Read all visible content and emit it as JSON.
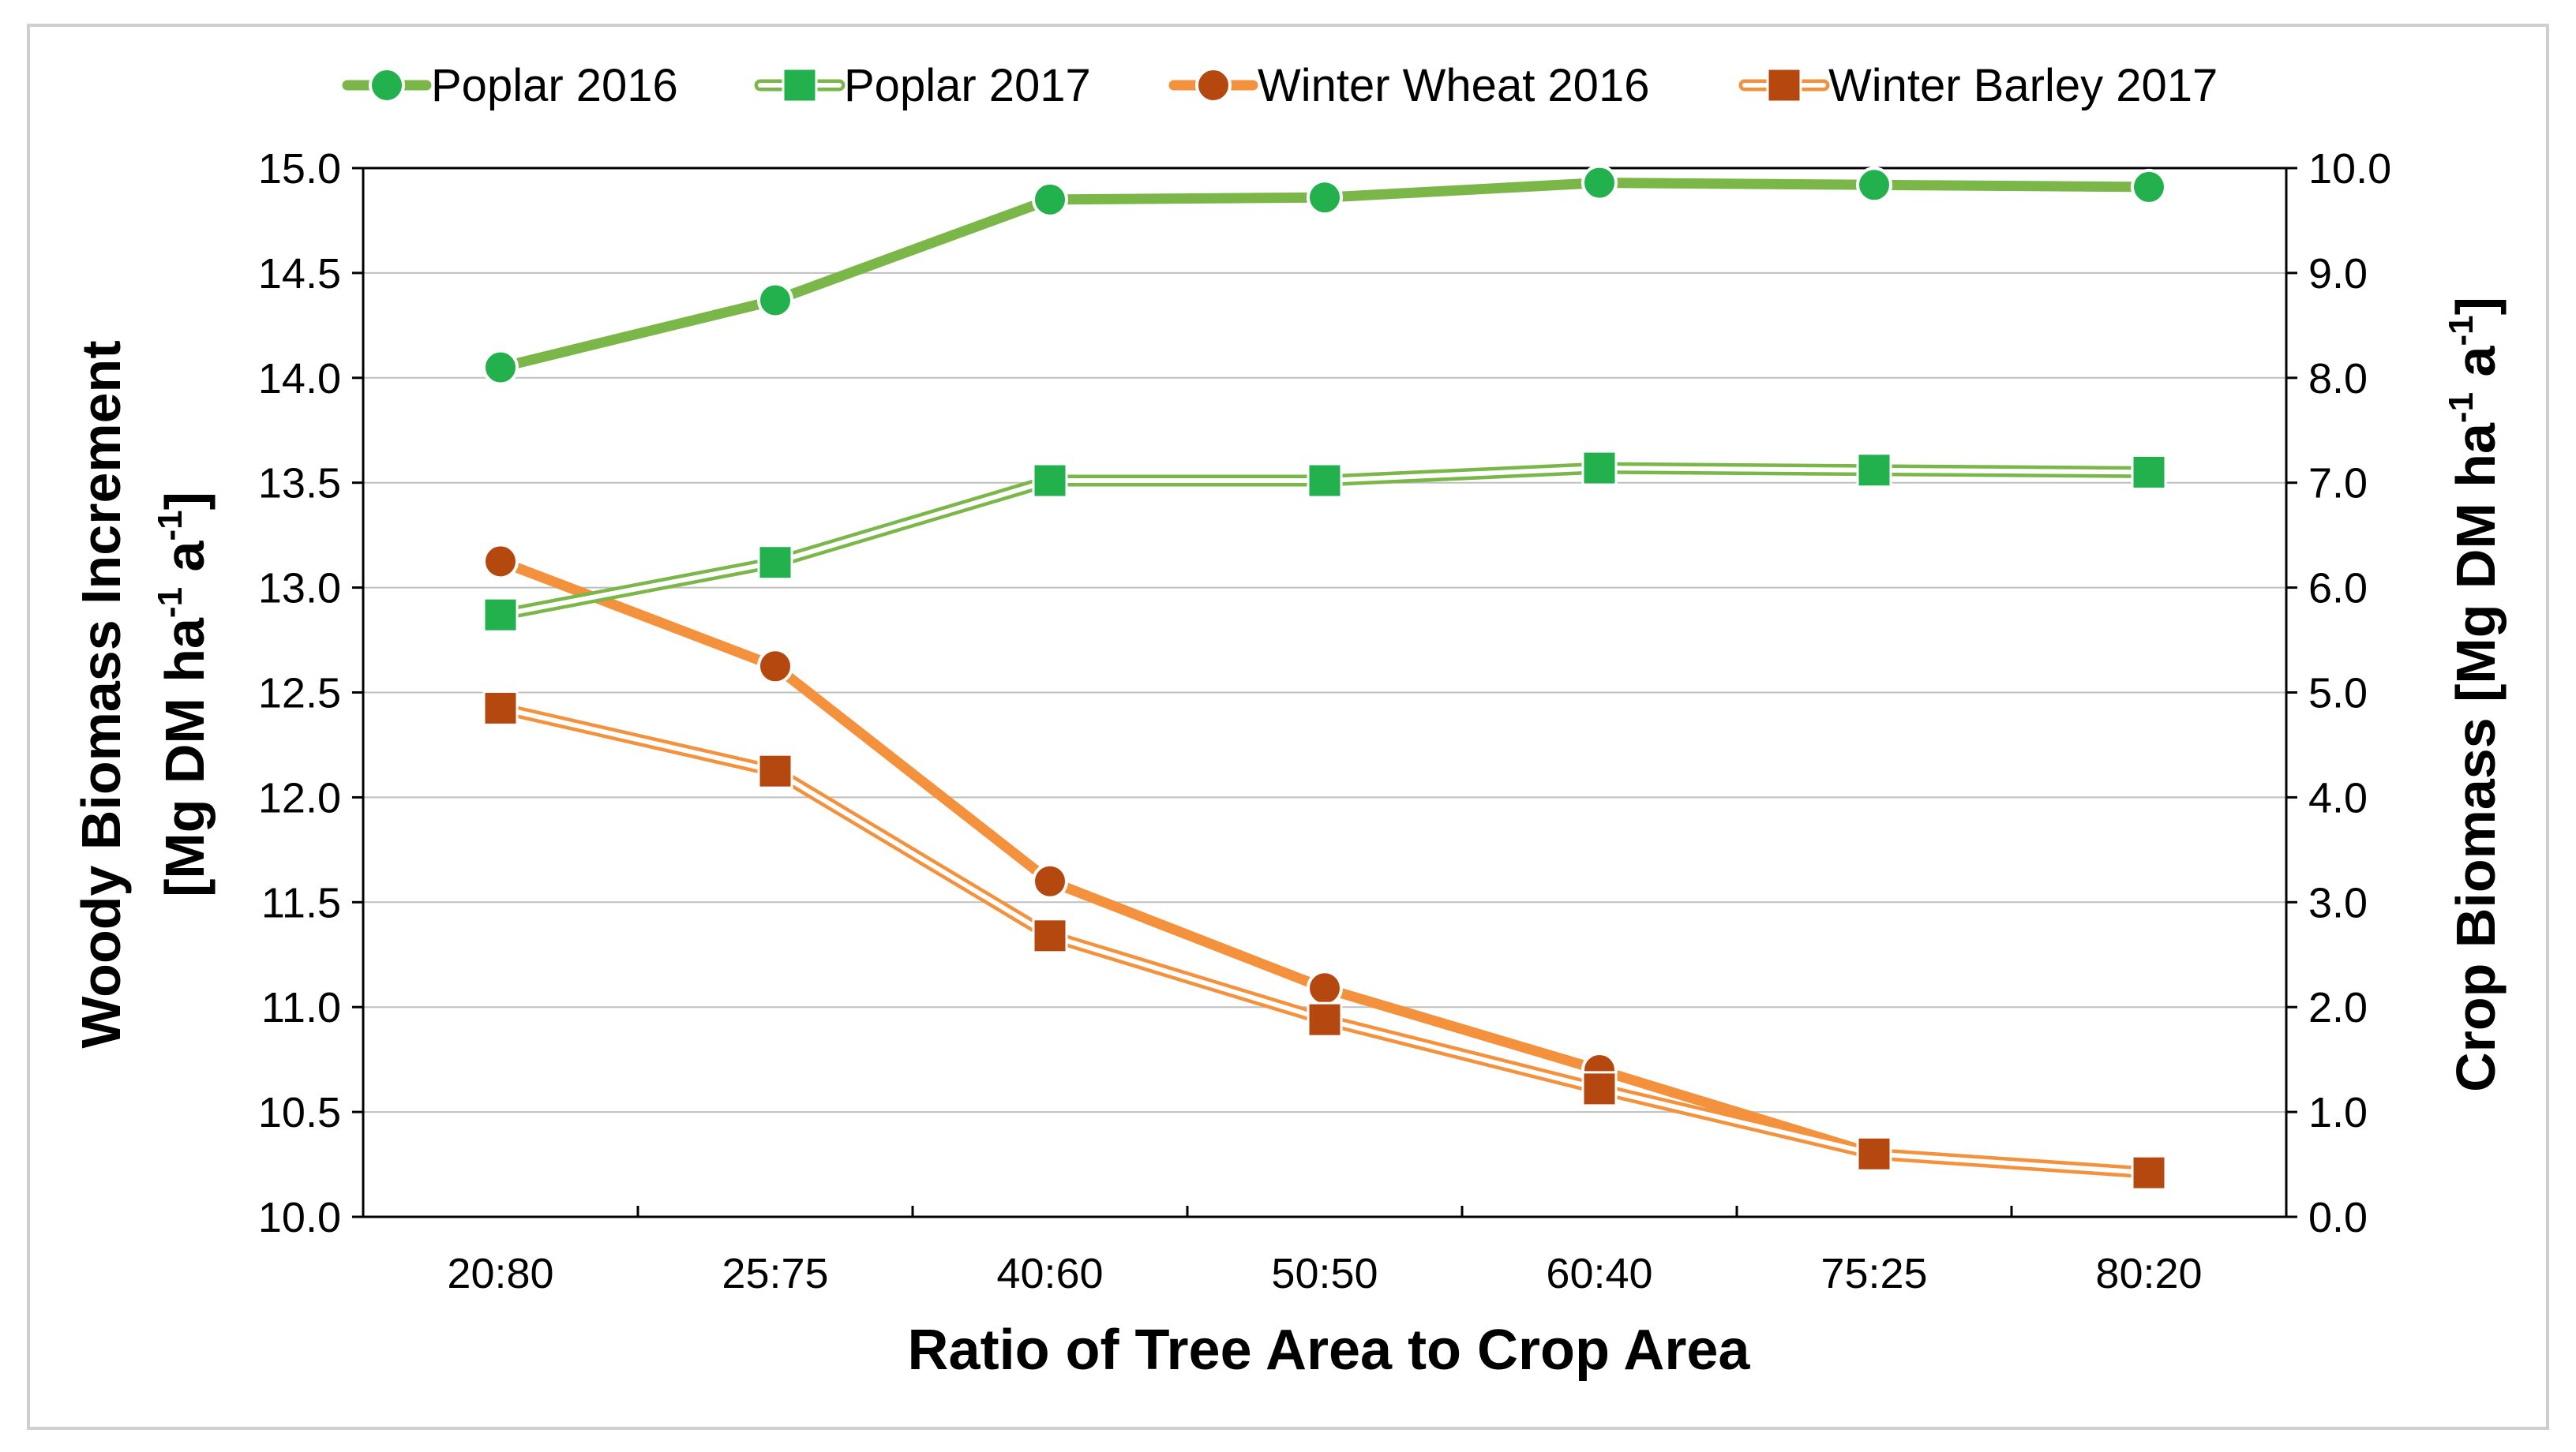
{
  "chart_data": {
    "type": "line",
    "title": "",
    "categories": [
      "20:80",
      "25:75",
      "40:60",
      "50:50",
      "60:40",
      "75:25",
      "80:20"
    ],
    "xlabel": "Ratio of Tree Area to Crop Area",
    "ylabel_left": {
      "main": "Woody Biomass Increment",
      "unit_prefix": "[Mg DM ha",
      "unit_exp1": "-1",
      "unit_mid": " a",
      "unit_exp2": "-1",
      "unit_suffix": "]"
    },
    "ylabel_right": {
      "main": "Crop Biomass ",
      "unit_prefix": "[Mg DM ha",
      "unit_exp1": "-1",
      "unit_mid": " a",
      "unit_exp2": "-1",
      "unit_suffix": "]"
    },
    "ylim_left": [
      10.0,
      15.0
    ],
    "ylim_right": [
      0.0,
      10.0
    ],
    "yticks_left": [
      "10.0",
      "10.5",
      "11.0",
      "11.5",
      "12.0",
      "12.5",
      "13.0",
      "13.5",
      "14.0",
      "14.5",
      "15.0"
    ],
    "yticks_right": [
      "0.0",
      "1.0",
      "2.0",
      "3.0",
      "4.0",
      "5.0",
      "6.0",
      "7.0",
      "8.0",
      "9.0",
      "10.0"
    ],
    "grid": true,
    "legend_position": "top",
    "series": [
      {
        "name": "Poplar 2016",
        "axis": "left",
        "values": [
          14.05,
          14.37,
          14.85,
          14.86,
          14.93,
          14.92,
          14.91
        ],
        "color": "#7ab648",
        "marker_color": "#22b14c",
        "marker": "circle",
        "line": "thick"
      },
      {
        "name": "Poplar 2017",
        "axis": "left",
        "values": [
          12.87,
          13.12,
          13.51,
          13.51,
          13.57,
          13.56,
          13.55
        ],
        "color": "#7ab648",
        "marker_color": "#22b14c",
        "marker": "square",
        "line": "double"
      },
      {
        "name": "Winter Wheat 2016",
        "axis": "right",
        "values": [
          6.25,
          5.25,
          3.2,
          2.18,
          1.4,
          0.6,
          0.42
        ],
        "color": "#f4913c",
        "marker_color": "#b5480f",
        "marker": "circle",
        "line": "thick"
      },
      {
        "name": "Winter Barley 2017",
        "axis": "right",
        "values": [
          4.85,
          4.25,
          2.68,
          1.88,
          1.22,
          0.6,
          0.42
        ],
        "color": "#f4913c",
        "marker_color": "#b5480f",
        "marker": "square",
        "line": "double"
      }
    ]
  }
}
